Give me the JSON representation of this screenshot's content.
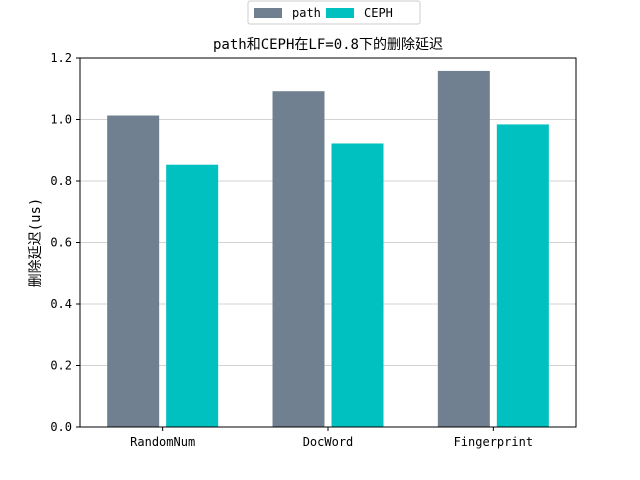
{
  "chart_data": {
    "type": "bar",
    "title": "path和CEPH在LF=0.8下的删除延迟",
    "xlabel": "",
    "ylabel": "删除延迟(us)",
    "categories": [
      "RandomNum",
      "DocWord",
      "Fingerprint"
    ],
    "series": [
      {
        "name": "path",
        "values": [
          1.013,
          1.092,
          1.158
        ],
        "color": "#708090"
      },
      {
        "name": "CEPH",
        "values": [
          0.853,
          0.922,
          0.984
        ],
        "color": "#00C0C0"
      }
    ],
    "ylim": [
      0,
      1.2
    ],
    "yticks": [
      "0.0",
      "0.2",
      "0.4",
      "0.6",
      "0.8",
      "1.0",
      "1.2"
    ],
    "grid": "y",
    "legend_position": "top-center"
  }
}
